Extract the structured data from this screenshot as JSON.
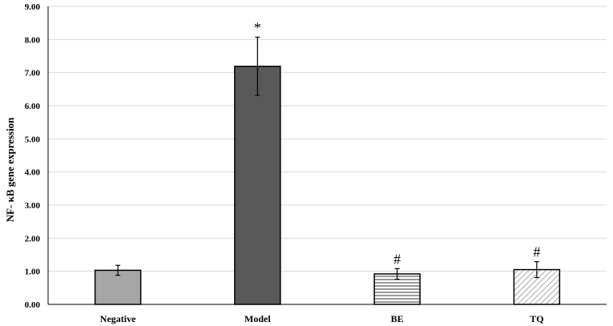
{
  "chart_data": {
    "type": "bar",
    "title": "",
    "xlabel": "",
    "ylabel": "NF- κB gene expression",
    "ylim": [
      0,
      9
    ],
    "y_ticks": [
      "0.00",
      "1.00",
      "2.00",
      "3.00",
      "4.00",
      "5.00",
      "6.00",
      "7.00",
      "8.00",
      "9.00"
    ],
    "grid": true,
    "categories": [
      "Negative",
      "Model",
      "BE",
      "TQ"
    ],
    "values": [
      1.03,
      7.19,
      0.92,
      1.05
    ],
    "errors": [
      0.15,
      0.88,
      0.16,
      0.24
    ],
    "annotations": [
      "",
      "*",
      "#",
      "#"
    ],
    "colors": [
      "#a6a6a6",
      "#595959",
      "hatch-horizontal",
      "hatch-diagonal"
    ]
  }
}
